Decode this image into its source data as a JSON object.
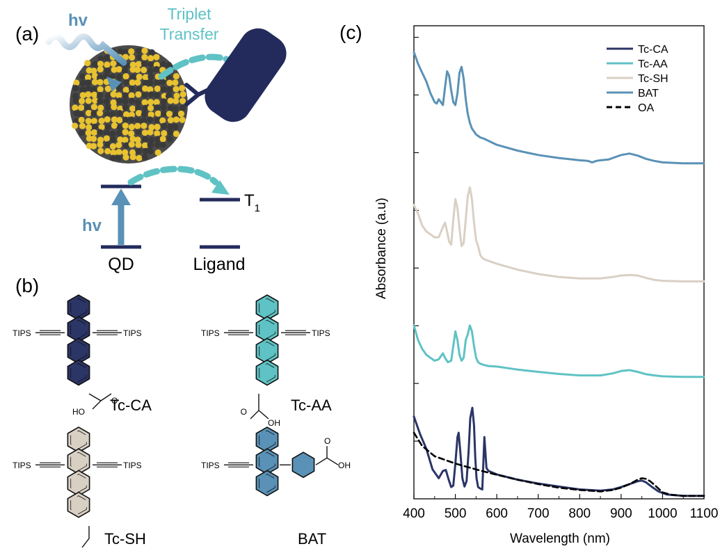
{
  "panel_labels": {
    "a": "(a)",
    "b": "(b)",
    "c": "(c)"
  },
  "schematic": {
    "hv_top": "hv",
    "triplet_line1": "Triplet",
    "triplet_line2": "Transfer",
    "hv_bottom": "hv",
    "t1": "T",
    "t1_sub": "1",
    "qd": "QD",
    "ligand": "Ligand"
  },
  "structures": {
    "tips": "TIPS",
    "oh": "OH",
    "ho": "HO",
    "o": "O",
    "names": [
      "Tc-CA",
      "Tc-AA",
      "Tc-SH",
      "BAT"
    ]
  },
  "colors": {
    "tc_ca": "#2b3566",
    "tc_aa": "#5fc2c4",
    "tc_sh": "#d9d0c4",
    "bat": "#5a91b6",
    "oa": "#000000",
    "qd_dark": "#3a3a3a",
    "qd_gold": "#e8c230"
  },
  "chart_data": {
    "type": "line",
    "xlabel": "Wavelength (nm)",
    "ylabel": "Absorbance (a.u)",
    "xlim": [
      400,
      1100
    ],
    "xticks": [
      "400",
      "500",
      "600",
      "700",
      "800",
      "900",
      "1000",
      "1100"
    ],
    "y_tick_labels": "none",
    "legend_position": "top-right",
    "series": [
      {
        "name": "Tc-CA",
        "color": "#2b3566",
        "offset": 0,
        "x": [
          400,
          415,
          430,
          445,
          460,
          470,
          477,
          484,
          490,
          495,
          500,
          505,
          508,
          512,
          517,
          522,
          527,
          532,
          536,
          541,
          545,
          548,
          551,
          555,
          560,
          565,
          570,
          575,
          580,
          600,
          650,
          700,
          750,
          800,
          850,
          880,
          900,
          920,
          940,
          950,
          960,
          975,
          990,
          1010,
          1050,
          1100
        ],
        "y": [
          0.27,
          0.21,
          0.16,
          0.09,
          0.06,
          0.085,
          0.088,
          0.055,
          0.03,
          0.035,
          0.11,
          0.2,
          0.215,
          0.15,
          0.06,
          0.032,
          0.05,
          0.15,
          0.265,
          0.3,
          0.24,
          0.13,
          0.06,
          0.03,
          0.025,
          0.022,
          0.2,
          0.095,
          0.085,
          0.073,
          0.055,
          0.042,
          0.032,
          0.022,
          0.018,
          0.022,
          0.03,
          0.04,
          0.05,
          0.052,
          0.046,
          0.03,
          0.015,
          0.005,
          0.0,
          0.0
        ]
      },
      {
        "name": "OA",
        "color": "#000000",
        "dashed": true,
        "offset": 0,
        "x": [
          400,
          420,
          450,
          500,
          550,
          600,
          650,
          700,
          750,
          800,
          850,
          880,
          900,
          920,
          940,
          950,
          960,
          970,
          980,
          990,
          1000,
          1020,
          1050,
          1100
        ],
        "y": [
          0.215,
          0.17,
          0.135,
          0.11,
          0.09,
          0.072,
          0.055,
          0.04,
          0.028,
          0.02,
          0.015,
          0.02,
          0.028,
          0.04,
          0.055,
          0.06,
          0.058,
          0.05,
          0.038,
          0.025,
          0.012,
          0.004,
          0.0,
          0.0
        ]
      },
      {
        "name": "Tc-AA",
        "color": "#5fc2c4",
        "offset": 0.45,
        "x": [
          400,
          410,
          420,
          430,
          440,
          450,
          460,
          470,
          475,
          482,
          490,
          495,
          500,
          505,
          510,
          515,
          520,
          525,
          530,
          535,
          540,
          545,
          550,
          555,
          560,
          570,
          580,
          600,
          650,
          700,
          750,
          800,
          850,
          880,
          900,
          920,
          940,
          960,
          980,
          1000,
          1050,
          1100
        ],
        "y": [
          0.13,
          0.08,
          0.05,
          0.03,
          0.02,
          0.01,
          0.015,
          0.035,
          0.02,
          0.005,
          0.01,
          0.06,
          0.11,
          0.08,
          0.03,
          0.01,
          0.02,
          0.08,
          0.1,
          0.13,
          0.11,
          0.06,
          0.02,
          0.005,
          0.0,
          -0.005,
          -0.008,
          -0.01,
          -0.02,
          -0.028,
          -0.035,
          -0.04,
          -0.04,
          -0.033,
          -0.025,
          -0.022,
          -0.028,
          -0.036,
          -0.04,
          -0.043,
          -0.045,
          -0.045
        ]
      },
      {
        "name": "Tc-SH",
        "color": "#d9d0c4",
        "offset": 0.85,
        "x": [
          400,
          410,
          420,
          430,
          440,
          450,
          460,
          470,
          475,
          480,
          485,
          490,
          495,
          500,
          505,
          510,
          515,
          520,
          525,
          530,
          535,
          540,
          545,
          550,
          555,
          560,
          565,
          570,
          580,
          600,
          650,
          700,
          750,
          800,
          850,
          880,
          900,
          920,
          940,
          960,
          980,
          1000,
          1050,
          1100
        ],
        "y": [
          0.14,
          0.11,
          0.07,
          0.05,
          0.04,
          0.03,
          0.03,
          0.065,
          0.08,
          0.05,
          0.015,
          0.005,
          0.09,
          0.16,
          0.13,
          0.06,
          0.0,
          0.01,
          0.09,
          0.17,
          0.2,
          0.16,
          0.08,
          0.02,
          0.0,
          -0.03,
          -0.04,
          -0.045,
          -0.05,
          -0.06,
          -0.08,
          -0.095,
          -0.105,
          -0.11,
          -0.11,
          -0.105,
          -0.1,
          -0.098,
          -0.1,
          -0.108,
          -0.115,
          -0.118,
          -0.12,
          -0.12
        ]
      },
      {
        "name": "BAT",
        "color": "#5a91b6",
        "offset": 1.25,
        "x": [
          400,
          410,
          420,
          430,
          440,
          450,
          455,
          460,
          465,
          470,
          475,
          480,
          485,
          490,
          495,
          500,
          505,
          510,
          515,
          520,
          525,
          530,
          535,
          540,
          545,
          550,
          555,
          560,
          570,
          600,
          650,
          700,
          750,
          800,
          820,
          830,
          840,
          850,
          870,
          900,
          920,
          940,
          960,
          980,
          1000,
          1050,
          1100
        ],
        "y": [
          0.26,
          0.22,
          0.19,
          0.16,
          0.12,
          0.09,
          0.085,
          0.1,
          0.09,
          0.08,
          0.14,
          0.195,
          0.18,
          0.13,
          0.09,
          0.08,
          0.12,
          0.19,
          0.21,
          0.17,
          0.1,
          0.05,
          0.02,
          0.0,
          -0.01,
          -0.02,
          -0.025,
          -0.03,
          -0.035,
          -0.055,
          -0.075,
          -0.09,
          -0.1,
          -0.108,
          -0.11,
          -0.115,
          -0.11,
          -0.108,
          -0.105,
          -0.09,
          -0.085,
          -0.092,
          -0.103,
          -0.11,
          -0.115,
          -0.118,
          -0.118
        ]
      }
    ]
  }
}
